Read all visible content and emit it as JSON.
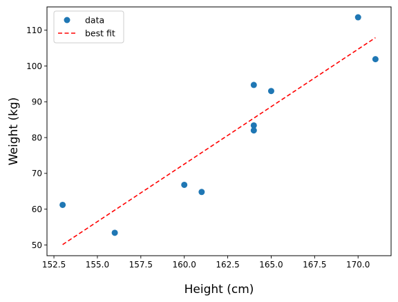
{
  "chart_data": {
    "type": "scatter",
    "title": "",
    "xlabel": "Height (cm)",
    "ylabel": "Weight (kg)",
    "xlim": [
      152.1,
      171.9
    ],
    "ylim": [
      47.0,
      116.5
    ],
    "xticks": [
      152.5,
      155.0,
      157.5,
      160.0,
      162.5,
      165.0,
      167.5,
      170.0
    ],
    "xtick_labels": [
      "152.5",
      "155.0",
      "157.5",
      "160.0",
      "162.5",
      "165.0",
      "167.5",
      "170.0"
    ],
    "yticks": [
      50,
      60,
      70,
      80,
      90,
      100,
      110
    ],
    "ytick_labels": [
      "50",
      "60",
      "70",
      "80",
      "90",
      "100",
      "110"
    ],
    "grid": false,
    "legend_position": "top-left",
    "series": [
      {
        "name": "data",
        "kind": "scatter",
        "color": "#1f77b4",
        "x": [
          153,
          156,
          160,
          161,
          164,
          164,
          164,
          165,
          170,
          171
        ],
        "y": [
          61.2,
          53.4,
          66.8,
          64.8,
          94.7,
          83.4,
          82.0,
          93.0,
          113.6,
          101.9
        ]
      },
      {
        "name": "best fit",
        "kind": "line",
        "style": "dashed",
        "color": "#ff0000",
        "x": [
          153,
          171
        ],
        "y": [
          50.1,
          107.9
        ]
      }
    ]
  }
}
